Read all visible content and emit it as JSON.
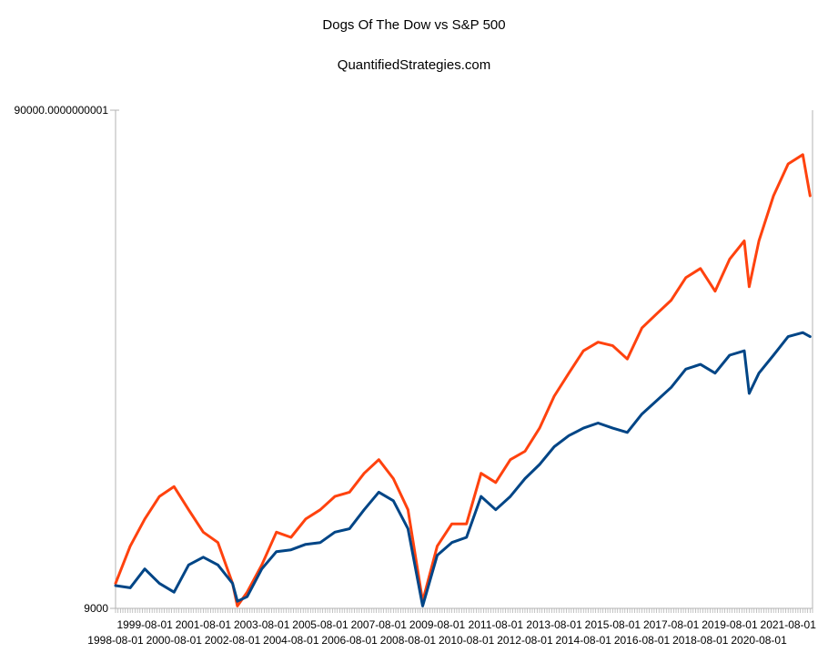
{
  "chart_data": {
    "type": "line",
    "title": "Dogs Of The Dow vs S&P 500",
    "subtitle": "QuantifiedStrategies.com",
    "xlabel": "",
    "ylabel": "",
    "yscale": "log",
    "ylim": [
      9000,
      90000.0000000001
    ],
    "ytick_labels": [
      "9000",
      "90000.0000000001"
    ],
    "xlim": [
      "1998-08",
      "2022-06"
    ],
    "xtick_labels": [
      "1998-08-01",
      "1999-08-01",
      "2000-08-01",
      "2001-08-01",
      "2002-08-01",
      "2003-08-01",
      "2004-08-01",
      "2005-08-01",
      "2006-08-01",
      "2007-08-01",
      "2008-08-01",
      "2009-08-01",
      "2010-08-01",
      "2011-08-01",
      "2012-08-01",
      "2013-08-01",
      "2014-08-01",
      "2015-08-01",
      "2016-08-01",
      "2017-08-01",
      "2018-08-01",
      "2019-08-01",
      "2020-08-01",
      "2021-08-01"
    ],
    "grid": false,
    "legend": "none",
    "x": [
      "1998-08",
      "1999-02",
      "1999-08",
      "2000-02",
      "2000-08",
      "2001-02",
      "2001-08",
      "2002-02",
      "2002-08",
      "2002-10",
      "2003-02",
      "2003-08",
      "2004-02",
      "2004-08",
      "2005-02",
      "2005-08",
      "2006-02",
      "2006-08",
      "2007-02",
      "2007-08",
      "2008-02",
      "2008-08",
      "2009-02",
      "2009-08",
      "2010-02",
      "2010-08",
      "2011-02",
      "2011-08",
      "2012-02",
      "2012-08",
      "2013-02",
      "2013-08",
      "2014-02",
      "2014-08",
      "2015-02",
      "2015-08",
      "2016-02",
      "2016-08",
      "2017-02",
      "2017-08",
      "2018-02",
      "2018-08",
      "2019-02",
      "2019-08",
      "2020-02",
      "2020-04",
      "2020-08",
      "2021-02",
      "2021-08",
      "2022-02",
      "2022-05"
    ],
    "series": [
      {
        "color": "#ff420e",
        "values": [
          10100,
          12000,
          13600,
          15100,
          15800,
          14200,
          12800,
          12200,
          10100,
          9100,
          9700,
          11000,
          12800,
          12500,
          13600,
          14200,
          15100,
          15400,
          16800,
          17900,
          16400,
          14200,
          9300,
          12000,
          13300,
          13300,
          16800,
          16100,
          17900,
          18600,
          20700,
          24000,
          26700,
          29600,
          30800,
          30300,
          28500,
          32900,
          35100,
          37400,
          41500,
          43300,
          39000,
          45200,
          49200,
          39800,
          49200,
          60600,
          70200,
          73300,
          60600
        ]
      },
      {
        "color": "#004586",
        "values": [
          10000,
          9900,
          10800,
          10100,
          9700,
          11000,
          11400,
          11000,
          10100,
          9300,
          9500,
          10800,
          11700,
          11800,
          12100,
          12200,
          12800,
          13000,
          14200,
          15400,
          14800,
          13000,
          9100,
          11500,
          12200,
          12500,
          15100,
          14200,
          15100,
          16400,
          17500,
          19000,
          20000,
          20700,
          21200,
          20700,
          20300,
          22100,
          23500,
          25000,
          27200,
          27800,
          26700,
          29000,
          29600,
          24300,
          26700,
          29000,
          31600,
          32200,
          31600
        ]
      }
    ]
  }
}
